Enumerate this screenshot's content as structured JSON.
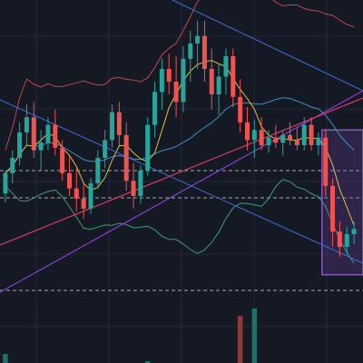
{
  "colors": {
    "background": "#151924",
    "grid": "#232838",
    "up": "#26a69a",
    "down": "#ef5350",
    "bb_upper": "#c2454f",
    "bb_lower": "#3b9e76",
    "bb_mid": "#3a8fc4",
    "ma_fast": "#d8c24a",
    "trend_line": "#3b6fd8",
    "ma_long_purple": "#8c3fd1",
    "ma_long_pink": "#d83a6a",
    "level_line": "#c9ccd4",
    "highlight_box_fill": "#6b3fa0",
    "highlight_box_stroke": "#9b6bd6"
  },
  "chart_data": {
    "type": "candlestick",
    "candles_ohlc": [
      [
        62,
        80,
        55,
        78
      ],
      [
        78,
        96,
        70,
        90
      ],
      [
        90,
        118,
        84,
        110
      ],
      [
        110,
        132,
        100,
        122
      ],
      [
        122,
        134,
        90,
        96
      ],
      [
        96,
        112,
        80,
        102
      ],
      [
        102,
        122,
        96,
        116
      ],
      [
        116,
        128,
        92,
        98
      ],
      [
        98,
        104,
        72,
        78
      ],
      [
        78,
        92,
        60,
        66
      ],
      [
        66,
        82,
        48,
        58
      ],
      [
        58,
        70,
        42,
        50
      ],
      [
        50,
        74,
        46,
        70
      ],
      [
        70,
        96,
        66,
        90
      ],
      [
        90,
        112,
        82,
        104
      ],
      [
        104,
        132,
        98,
        126
      ],
      [
        126,
        134,
        100,
        108
      ],
      [
        108,
        118,
        64,
        72
      ],
      [
        72,
        86,
        50,
        60
      ],
      [
        60,
        84,
        54,
        80
      ],
      [
        80,
        122,
        76,
        116
      ],
      [
        116,
        150,
        106,
        142
      ],
      [
        142,
        168,
        128,
        160
      ],
      [
        160,
        172,
        140,
        150
      ],
      [
        150,
        170,
        122,
        134
      ],
      [
        134,
        178,
        126,
        168
      ],
      [
        168,
        190,
        150,
        180
      ],
      [
        180,
        198,
        160,
        186
      ],
      [
        186,
        198,
        150,
        160
      ],
      [
        160,
        176,
        128,
        140
      ],
      [
        140,
        164,
        124,
        154
      ],
      [
        154,
        176,
        140,
        170
      ],
      [
        170,
        176,
        130,
        138
      ],
      [
        138,
        152,
        110,
        118
      ],
      [
        118,
        130,
        96,
        104
      ],
      [
        104,
        120,
        90,
        112
      ],
      [
        112,
        122,
        96,
        100
      ],
      [
        100,
        112,
        94,
        106
      ],
      [
        106,
        116,
        98,
        102
      ],
      [
        102,
        112,
        92,
        108
      ],
      [
        108,
        118,
        100,
        104
      ],
      [
        104,
        114,
        96,
        100
      ],
      [
        100,
        122,
        96,
        116
      ],
      [
        116,
        122,
        96,
        100
      ],
      [
        100,
        110,
        92,
        106
      ],
      [
        106,
        112,
        60,
        68
      ],
      [
        68,
        74,
        20,
        32
      ],
      [
        32,
        40,
        12,
        20
      ],
      [
        20,
        36,
        14,
        30
      ],
      [
        30,
        40,
        22,
        34
      ]
    ],
    "volumes": [
      10,
      0,
      0,
      0,
      0,
      0,
      0,
      0,
      0,
      0,
      0,
      0,
      0,
      0,
      0,
      0,
      0,
      0,
      0,
      0,
      2,
      0,
      0,
      0,
      0,
      0,
      0,
      0,
      0,
      0,
      0,
      0,
      0,
      52,
      0,
      60,
      0,
      0,
      0,
      0,
      0,
      0,
      0,
      0,
      0,
      0,
      0,
      0,
      0,
      0
    ],
    "horizontal_levels": [
      {
        "style": "dashed",
        "level": 0.47
      },
      {
        "style": "dashed",
        "level": 0.545
      },
      {
        "style": "dashed",
        "level": 0.8
      }
    ],
    "highlight_box": {
      "from_candle": 45,
      "to_candle": 49
    },
    "grid": true
  }
}
